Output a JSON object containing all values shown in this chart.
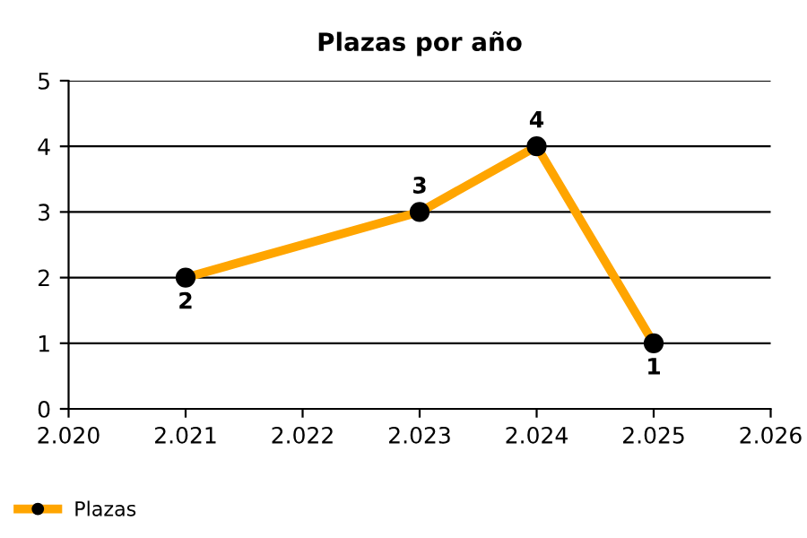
{
  "chart_data": {
    "type": "line",
    "title": "Plazas por año",
    "x": [
      2021,
      2023,
      2024,
      2025
    ],
    "series": [
      {
        "name": "Plazas",
        "color": "#ffa500",
        "values": [
          2,
          3,
          4,
          1
        ]
      }
    ],
    "xlim": [
      2020,
      2026
    ],
    "xticks": [
      {
        "value": 2020,
        "label": "2.020"
      },
      {
        "value": 2021,
        "label": "2.021"
      },
      {
        "value": 2022,
        "label": "2.022"
      },
      {
        "value": 2023,
        "label": "2.023"
      },
      {
        "value": 2024,
        "label": "2.024"
      },
      {
        "value": 2025,
        "label": "2.025"
      },
      {
        "value": 2026,
        "label": "2.026"
      }
    ],
    "ylim": [
      0,
      5
    ],
    "yticks": [
      0,
      1,
      2,
      3,
      4,
      5
    ],
    "grid": "y",
    "legend": "bottom left",
    "marker": "circle",
    "line_style": "solid",
    "data_labels": true
  }
}
